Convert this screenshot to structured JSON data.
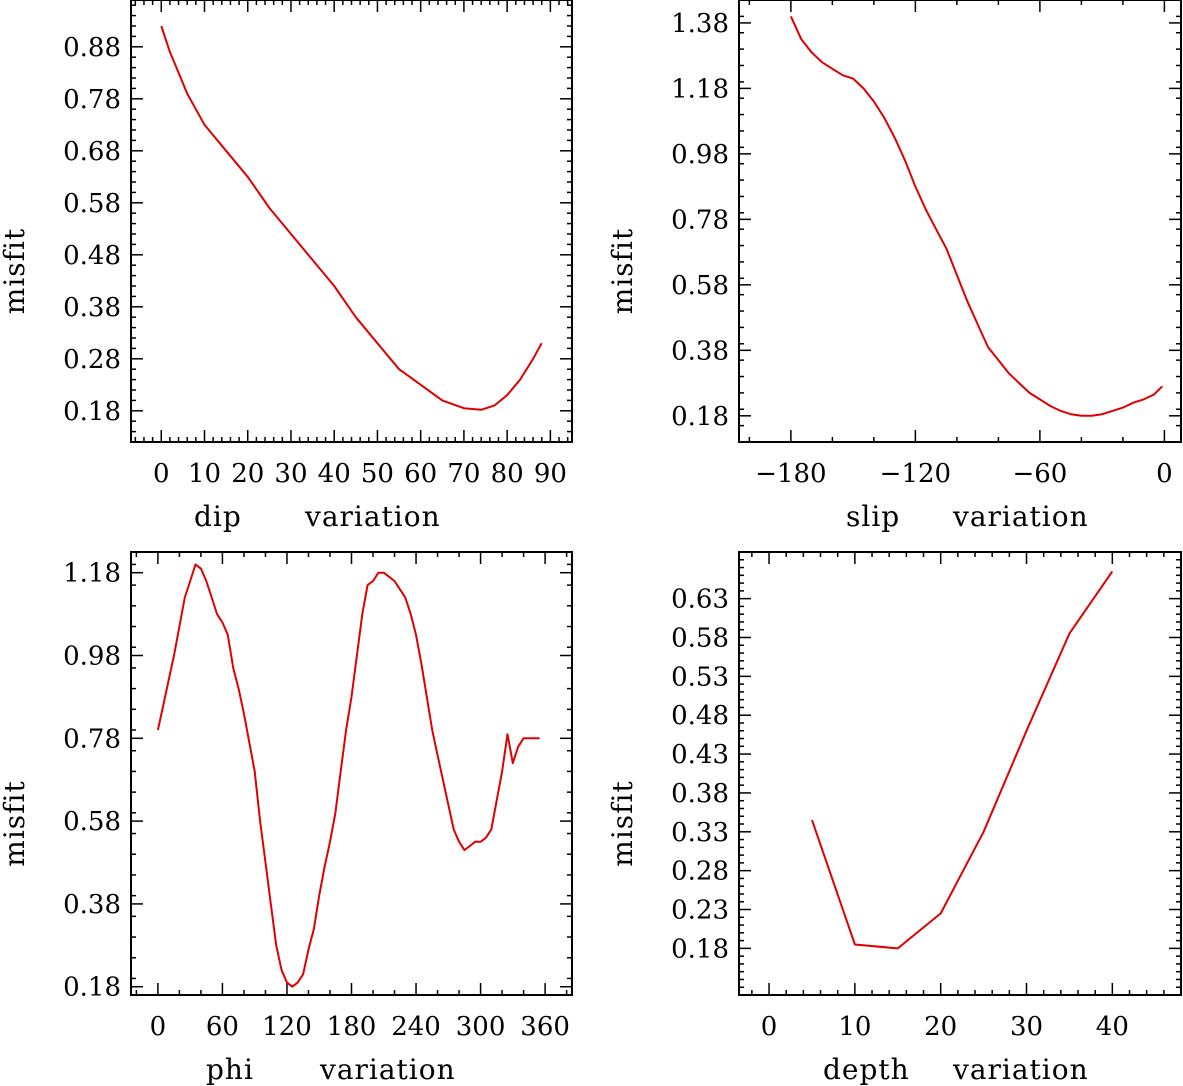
{
  "chart_data": [
    {
      "type": "line",
      "ylabel": "misfit",
      "xlabel_parts": [
        "dip",
        "variation"
      ],
      "xlim": [
        -7,
        95
      ],
      "ylim": [
        0.12,
        0.97
      ],
      "xticks_major": [
        0,
        10,
        20,
        30,
        40,
        50,
        60,
        70,
        80,
        90
      ],
      "xtick_labels": [
        "0",
        "10",
        "20",
        "30",
        "40",
        "50",
        "60",
        "70",
        "80",
        "90"
      ],
      "xminor_step": 2,
      "yticks_major": [
        0.18,
        0.28,
        0.38,
        0.48,
        0.58,
        0.68,
        0.78,
        0.88
      ],
      "ytick_labels": [
        "0.18",
        "0.28",
        "0.38",
        "0.48",
        "0.58",
        "0.68",
        "0.78",
        "0.88"
      ],
      "yminor_step": 0.02,
      "series": [
        {
          "name": "misfit",
          "x": [
            0,
            2,
            4,
            6,
            10,
            15,
            20,
            25,
            30,
            35,
            40,
            45,
            50,
            55,
            60,
            65,
            70,
            74,
            77,
            80,
            83,
            86,
            88
          ],
          "y": [
            0.92,
            0.87,
            0.83,
            0.79,
            0.73,
            0.68,
            0.63,
            0.57,
            0.52,
            0.47,
            0.42,
            0.36,
            0.31,
            0.26,
            0.23,
            0.2,
            0.185,
            0.182,
            0.19,
            0.21,
            0.24,
            0.28,
            0.31
          ]
        }
      ]
    },
    {
      "type": "line",
      "ylabel": "misfit",
      "xlabel_parts": [
        "slip",
        "variation"
      ],
      "xlim": [
        -205,
        8
      ],
      "ylim": [
        0.1,
        1.45
      ],
      "xticks_major": [
        -180,
        -120,
        -60,
        0
      ],
      "xtick_labels": [
        "−180",
        "−120",
        "−60",
        "0"
      ],
      "xminor_step": 20,
      "yticks_major": [
        0.18,
        0.38,
        0.58,
        0.78,
        0.98,
        1.18,
        1.38
      ],
      "ytick_labels": [
        "0.18",
        "0.38",
        "0.58",
        "0.78",
        "0.98",
        "1.18",
        "1.38"
      ],
      "yminor_step": 0.05,
      "series": [
        {
          "name": "misfit",
          "x": [
            -180,
            -175,
            -170,
            -165,
            -160,
            -155,
            -150,
            -145,
            -140,
            -135,
            -130,
            -125,
            -120,
            -115,
            -110,
            -105,
            -100,
            -95,
            -90,
            -85,
            -80,
            -75,
            -70,
            -65,
            -60,
            -55,
            -50,
            -45,
            -40,
            -35,
            -30,
            -25,
            -20,
            -15,
            -10,
            -5,
            -1
          ],
          "y": [
            1.4,
            1.33,
            1.29,
            1.26,
            1.24,
            1.22,
            1.21,
            1.18,
            1.14,
            1.09,
            1.03,
            0.96,
            0.88,
            0.81,
            0.75,
            0.69,
            0.61,
            0.53,
            0.46,
            0.39,
            0.35,
            0.31,
            0.28,
            0.25,
            0.23,
            0.21,
            0.195,
            0.185,
            0.18,
            0.18,
            0.185,
            0.195,
            0.205,
            0.22,
            0.23,
            0.245,
            0.27
          ]
        }
      ]
    },
    {
      "type": "line",
      "ylabel": "misfit",
      "xlabel_parts": [
        "phi",
        "variation"
      ],
      "xlim": [
        -25,
        385
      ],
      "ylim": [
        0.16,
        1.23
      ],
      "xticks_major": [
        0,
        60,
        120,
        180,
        240,
        300,
        360
      ],
      "xtick_labels": [
        "0",
        "60",
        "120",
        "180",
        "240",
        "300",
        "360"
      ],
      "xminor_step": 20,
      "yticks_major": [
        0.18,
        0.38,
        0.58,
        0.78,
        0.98,
        1.18
      ],
      "ytick_labels": [
        "0.18",
        "0.38",
        "0.58",
        "0.78",
        "0.98",
        "1.18"
      ],
      "yminor_step": 0.05,
      "series": [
        {
          "name": "misfit",
          "x": [
            0,
            5,
            10,
            15,
            20,
            25,
            30,
            35,
            40,
            45,
            50,
            55,
            60,
            65,
            70,
            75,
            80,
            85,
            90,
            95,
            100,
            105,
            110,
            115,
            120,
            125,
            130,
            135,
            140,
            145,
            150,
            155,
            160,
            165,
            170,
            175,
            180,
            185,
            190,
            195,
            200,
            205,
            210,
            215,
            220,
            225,
            230,
            235,
            240,
            245,
            250,
            255,
            260,
            265,
            270,
            275,
            280,
            285,
            290,
            295,
            300,
            305,
            310,
            315,
            320,
            325,
            330,
            335,
            340,
            345,
            350,
            355
          ],
          "y": [
            0.8,
            0.86,
            0.92,
            0.98,
            1.05,
            1.12,
            1.16,
            1.2,
            1.19,
            1.16,
            1.12,
            1.08,
            1.06,
            1.03,
            0.95,
            0.9,
            0.84,
            0.77,
            0.7,
            0.58,
            0.48,
            0.38,
            0.28,
            0.22,
            0.19,
            0.18,
            0.19,
            0.21,
            0.27,
            0.32,
            0.4,
            0.47,
            0.53,
            0.6,
            0.7,
            0.8,
            0.88,
            0.98,
            1.08,
            1.15,
            1.16,
            1.18,
            1.18,
            1.17,
            1.16,
            1.14,
            1.12,
            1.08,
            1.03,
            0.96,
            0.88,
            0.8,
            0.74,
            0.68,
            0.62,
            0.56,
            0.53,
            0.51,
            0.52,
            0.53,
            0.53,
            0.54,
            0.56,
            0.63,
            0.7,
            0.79,
            0.72,
            0.76,
            0.78,
            0.78,
            0.78,
            0.78
          ]
        }
      ]
    },
    {
      "type": "line",
      "ylabel": "misfit",
      "xlabel_parts": [
        "depth",
        "variation"
      ],
      "xlim": [
        -3.5,
        48
      ],
      "ylim": [
        0.12,
        0.69
      ],
      "xticks_major": [
        0,
        10,
        20,
        30,
        40
      ],
      "xtick_labels": [
        "0",
        "10",
        "20",
        "30",
        "40"
      ],
      "xminor_step": 2,
      "yticks_major": [
        0.18,
        0.23,
        0.28,
        0.33,
        0.38,
        0.43,
        0.48,
        0.53,
        0.58,
        0.63
      ],
      "ytick_labels": [
        "0.18",
        "0.23",
        "0.28",
        "0.33",
        "0.38",
        "0.43",
        "0.48",
        "0.53",
        "0.58",
        "0.63"
      ],
      "yminor_step": 0.01,
      "series": [
        {
          "name": "misfit",
          "x": [
            5,
            10,
            15,
            20,
            25,
            30,
            35,
            40
          ],
          "y": [
            0.345,
            0.185,
            0.18,
            0.225,
            0.33,
            0.46,
            0.585,
            0.665
          ]
        }
      ]
    }
  ]
}
